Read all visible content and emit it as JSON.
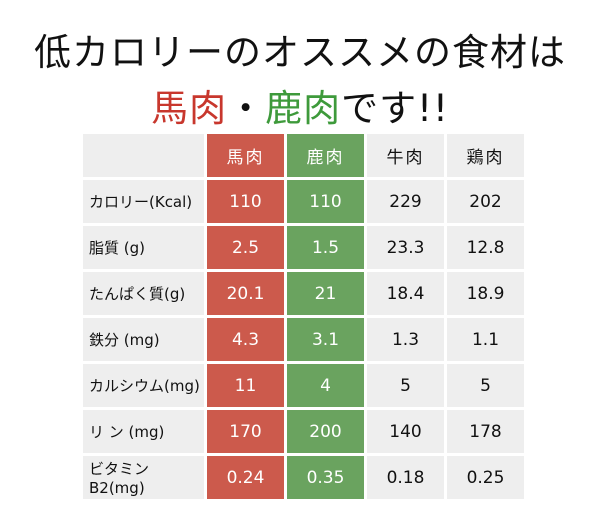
{
  "title": {
    "line1": "低カロリーのオススメの食材は",
    "horse": "馬肉",
    "dot": "・",
    "deer": "鹿肉",
    "suffix": "です!!"
  },
  "colors": {
    "horse_accent": "#cc5a4c",
    "deer_accent": "#6aa35f",
    "cell_bg": "#eeeeee"
  },
  "table": {
    "headers": [
      "馬肉",
      "鹿肉",
      "牛肉",
      "鶏肉"
    ],
    "rows": [
      {
        "label": "カロリー(Kcal)",
        "values": [
          "110",
          "110",
          "229",
          "202"
        ]
      },
      {
        "label": "脂質 (g)",
        "values": [
          "2.5",
          "1.5",
          "23.3",
          "12.8"
        ]
      },
      {
        "label": "たんぱく質(g)",
        "values": [
          "20.1",
          "21",
          "18.4",
          "18.9"
        ]
      },
      {
        "label": "鉄分 (mg)",
        "values": [
          "4.3",
          "3.1",
          "1.3",
          "1.1"
        ]
      },
      {
        "label": "カルシウム(mg)",
        "values": [
          "11",
          "4",
          "5",
          "5"
        ]
      },
      {
        "label": "リ ン (mg)",
        "values": [
          "170",
          "200",
          "140",
          "178"
        ]
      },
      {
        "label": "ビタミンB2(mg)",
        "values": [
          "0.24",
          "0.35",
          "0.18",
          "0.25"
        ]
      }
    ]
  }
}
